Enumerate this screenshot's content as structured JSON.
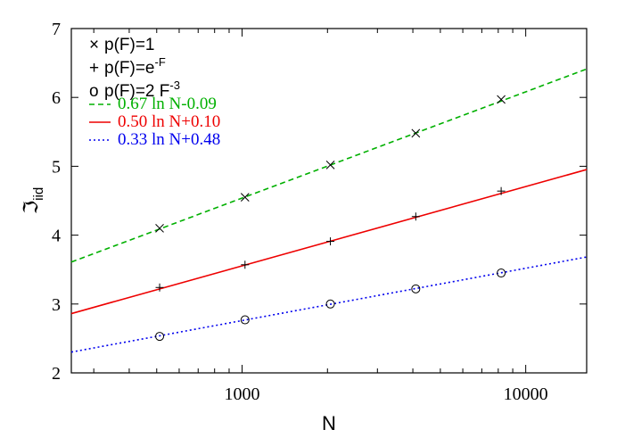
{
  "chart_data": {
    "type": "line",
    "xscale": "log",
    "xlim": [
      250,
      16400
    ],
    "ylim": [
      2,
      7
    ],
    "xlabel": "N",
    "ylabel": "ℑ",
    "ylabel_sub": "iid",
    "xticks": [
      1000,
      10000
    ],
    "xtick_labels": [
      "1000",
      "10000"
    ],
    "yticks": [
      2,
      3,
      4,
      5,
      6,
      7
    ],
    "ytick_labels": [
      "2",
      "3",
      "4",
      "5",
      "6",
      "7"
    ],
    "grid": false,
    "legend_position": "top-left",
    "marker_legend": [
      {
        "symbol": "×",
        "label": "p(F)=1",
        "marker": "x"
      },
      {
        "symbol": "+",
        "label": "p(F)=e",
        "sup": "-F",
        "marker": "plus"
      },
      {
        "symbol": "o",
        "label": "p(F)=2 F",
        "sup": "-3",
        "marker": "circle"
      }
    ],
    "series": [
      {
        "marker": "x",
        "x": [
          512,
          1024,
          2048,
          4096,
          8192
        ],
        "y": [
          4.1,
          4.55,
          5.02,
          5.48,
          5.97
        ]
      },
      {
        "marker": "plus",
        "x": [
          512,
          1024,
          2048,
          4096,
          8192
        ],
        "y": [
          3.24,
          3.57,
          3.91,
          4.27,
          4.64
        ]
      },
      {
        "marker": "circle",
        "x": [
          512,
          1024,
          2048,
          4096,
          8192
        ],
        "y": [
          2.53,
          2.77,
          3.0,
          3.22,
          3.45
        ]
      }
    ],
    "fits": [
      {
        "label": "0.67 ln N-0.09",
        "a": 0.67,
        "b": -0.09,
        "color": "#00b000",
        "dash": "6,4",
        "legend_sample": "---"
      },
      {
        "label": "0.50 ln N+0.10",
        "a": 0.5,
        "b": 0.1,
        "color": "#ee0000",
        "dash": "",
        "legend_sample": "—"
      },
      {
        "label": "0.33 ln N+0.48",
        "a": 0.33,
        "b": 0.48,
        "color": "#0000ee",
        "dash": "2,3",
        "legend_sample": "···"
      }
    ]
  }
}
